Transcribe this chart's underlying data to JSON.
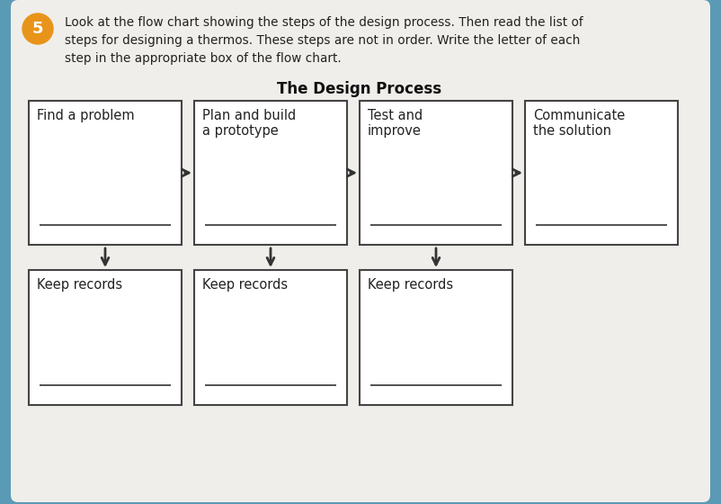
{
  "bg_outer": "#5a9ab5",
  "bg_white": "#f5f5f0",
  "title": "The Design Process",
  "question_number": "5",
  "question_text_line1": "Look at the flow chart showing the steps of the design process. Then read the list of",
  "question_text_line2": "steps for designing a thermos. These steps are not in order. Write the letter of each",
  "question_text_line3": "step in the appropriate box of the flow chart.",
  "top_boxes": [
    {
      "label": "Find a problem"
    },
    {
      "label": "Plan and build\na prototype"
    },
    {
      "label": "Test and\nimprove"
    },
    {
      "label": "Communicate\nthe solution"
    }
  ],
  "bottom_boxes": [
    {
      "label": "Keep records"
    },
    {
      "label": "Keep records"
    },
    {
      "label": "Keep records"
    }
  ],
  "title_fontsize": 12,
  "label_fontsize": 10.5,
  "question_fontsize": 9.8,
  "number_fontsize": 13,
  "box_edge_color": "#444444",
  "arrow_color": "#333333",
  "text_color": "#222222",
  "circle_color": "#e8941a",
  "inner_bg": "#f0eeea"
}
